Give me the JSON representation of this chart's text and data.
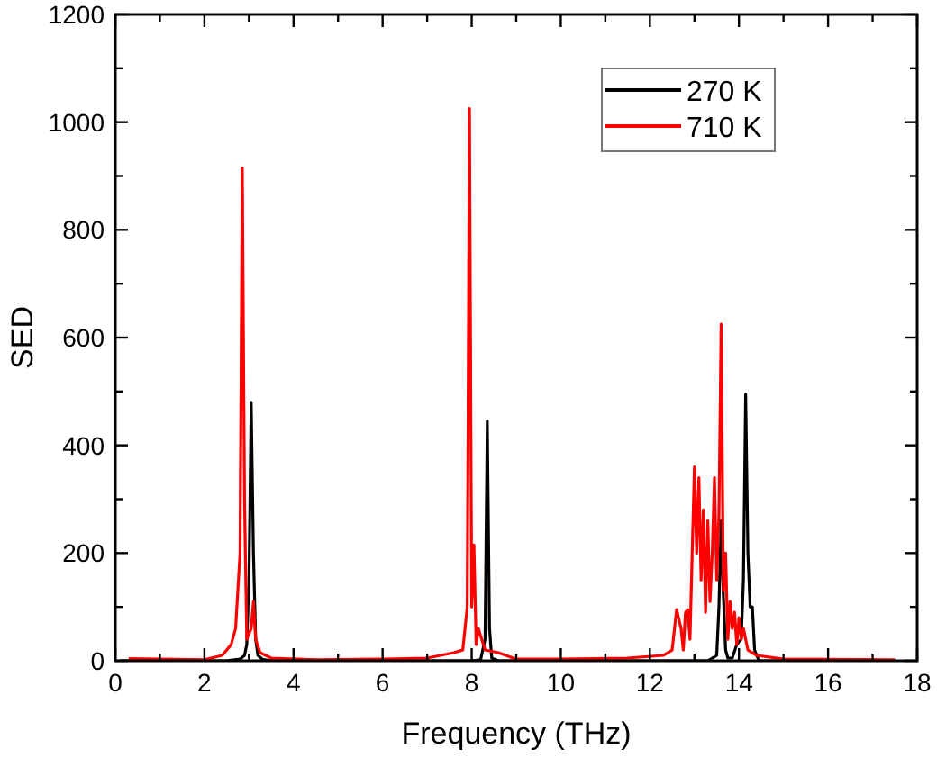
{
  "chart_data": {
    "type": "line",
    "xlabel": "Frequency (THz)",
    "ylabel": "SED",
    "xlim": [
      0,
      18
    ],
    "ylim": [
      0,
      1200
    ],
    "xticks": [
      0,
      {
        "value": 1,
        "label": null
      },
      2,
      {
        "value": 3,
        "label": null
      },
      4,
      {
        "value": 5,
        "label": null
      },
      6,
      {
        "value": 7,
        "label": null
      },
      8,
      {
        "value": 9,
        "label": null
      },
      10,
      {
        "value": 11,
        "label": null
      },
      12,
      {
        "value": 13,
        "label": null
      },
      14,
      {
        "value": 15,
        "label": null
      },
      16,
      {
        "value": 17,
        "label": null
      },
      18
    ],
    "yticks": [
      0,
      {
        "value": 100,
        "label": null
      },
      200,
      {
        "value": 300,
        "label": null
      },
      400,
      {
        "value": 500,
        "label": null
      },
      600,
      {
        "value": 700,
        "label": null
      },
      800,
      {
        "value": 900,
        "label": null
      },
      1000,
      {
        "value": 1100,
        "label": null
      },
      1200
    ],
    "legend": "top right",
    "grid": false,
    "line_style": "solid",
    "series": [
      {
        "name": "270 K",
        "color": "#000000",
        "x": [
          0.1,
          2.5,
          2.8,
          2.9,
          2.95,
          3.0,
          3.05,
          3.1,
          3.15,
          3.2,
          3.3,
          3.5,
          8.0,
          8.2,
          8.3,
          8.35,
          8.4,
          8.45,
          8.6,
          13.3,
          13.5,
          13.55,
          13.6,
          13.65,
          13.7,
          13.75,
          13.85,
          13.95,
          14.05,
          14.1,
          14.15,
          14.2,
          14.25,
          14.3,
          14.35,
          14.45,
          17.5
        ],
        "values": [
          0,
          0,
          3,
          10,
          30,
          150,
          480,
          200,
          40,
          10,
          3,
          0,
          0,
          2,
          40,
          445,
          60,
          5,
          0,
          0,
          10,
          100,
          260,
          120,
          20,
          5,
          5,
          30,
          40,
          150,
          495,
          200,
          100,
          100,
          20,
          0,
          0
        ]
      },
      {
        "name": "710 K",
        "color": "#ff0000",
        "x": [
          0.3,
          2.0,
          2.4,
          2.6,
          2.7,
          2.8,
          2.85,
          2.9,
          2.95,
          3.05,
          3.1,
          3.15,
          3.25,
          3.5,
          4.5,
          6.0,
          7.0,
          7.6,
          7.8,
          7.9,
          7.95,
          8.0,
          8.05,
          8.1,
          8.15,
          8.3,
          8.6,
          9.0,
          10.0,
          11.5,
          12.3,
          12.5,
          12.6,
          12.7,
          12.75,
          12.8,
          12.85,
          12.9,
          13.0,
          13.05,
          13.1,
          13.15,
          13.2,
          13.25,
          13.3,
          13.35,
          13.4,
          13.45,
          13.5,
          13.55,
          13.6,
          13.65,
          13.7,
          13.75,
          13.8,
          13.85,
          13.9,
          13.95,
          14.0,
          14.05,
          14.1,
          14.2,
          14.4,
          15.0,
          17.5
        ],
        "values": [
          4,
          2,
          10,
          30,
          60,
          200,
          915,
          300,
          40,
          60,
          110,
          40,
          15,
          5,
          2,
          3,
          5,
          15,
          20,
          100,
          1025,
          100,
          215,
          30,
          60,
          20,
          15,
          3,
          3,
          5,
          10,
          20,
          95,
          60,
          20,
          90,
          95,
          40,
          360,
          200,
          340,
          150,
          280,
          90,
          260,
          110,
          200,
          340,
          150,
          270,
          625,
          130,
          200,
          40,
          110,
          60,
          90,
          30,
          80,
          40,
          60,
          20,
          10,
          3,
          2
        ]
      }
    ]
  }
}
